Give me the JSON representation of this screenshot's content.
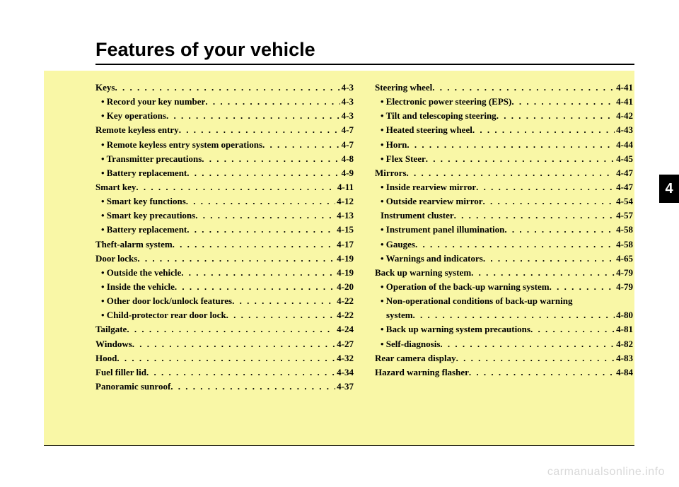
{
  "title": "Features of your vehicle",
  "chapter": "4",
  "watermark": "carmanualsonline.info",
  "toc": [
    {
      "label": "Keys",
      "page": "4-3",
      "level": "main"
    },
    {
      "label": "• Record your key number",
      "page": "4-3",
      "level": "sub"
    },
    {
      "label": "• Key operations",
      "page": "4-3",
      "level": "sub"
    },
    {
      "label": "Remote keyless entry",
      "page": "4-7",
      "level": "main"
    },
    {
      "label": "• Remote keyless entry system operations",
      "page": "4-7",
      "level": "sub"
    },
    {
      "label": "• Transmitter precautions",
      "page": "4-8",
      "level": "sub"
    },
    {
      "label": "• Battery replacement",
      "page": "4-9",
      "level": "sub"
    },
    {
      "label": "Smart key",
      "page": "4-11",
      "level": "main"
    },
    {
      "label": "• Smart key functions",
      "page": "4-12",
      "level": "sub"
    },
    {
      "label": "• Smart key precautions",
      "page": "4-13",
      "level": "sub"
    },
    {
      "label": "• Battery replacement",
      "page": "4-15",
      "level": "sub"
    },
    {
      "label": "Theft-alarm system",
      "page": "4-17",
      "level": "main"
    },
    {
      "label": "Door locks",
      "page": "4-19",
      "level": "main"
    },
    {
      "label": "• Outside the vehicle",
      "page": "4-19",
      "level": "sub"
    },
    {
      "label": "• Inside the vehicle",
      "page": "4-20",
      "level": "sub"
    },
    {
      "label": "• Other door lock/unlock features",
      "page": "4-22",
      "level": "sub"
    },
    {
      "label": "• Child-protector rear door lock",
      "page": "4-22",
      "level": "sub"
    },
    {
      "label": "Tailgate",
      "page": "4-24",
      "level": "main"
    },
    {
      "label": "Windows",
      "page": "4-27",
      "level": "main"
    },
    {
      "label": "Hood",
      "page": "4-32",
      "level": "main"
    },
    {
      "label": "Fuel filler lid",
      "page": "4-34",
      "level": "main"
    },
    {
      "label": "Panoramic sunroof",
      "page": "4-37",
      "level": "main"
    },
    {
      "label": "Steering wheel",
      "page": "4-41",
      "level": "main"
    },
    {
      "label": "• Electronic power steering (EPS)",
      "page": "4-41",
      "level": "sub"
    },
    {
      "label": "• Tilt and telescoping steering",
      "page": "4-42",
      "level": "sub"
    },
    {
      "label": "• Heated steering wheel",
      "page": "4-43",
      "level": "sub"
    },
    {
      "label": "• Horn",
      "page": "4-44",
      "level": "sub"
    },
    {
      "label": "• Flex Steer",
      "page": "4-45",
      "level": "sub"
    },
    {
      "label": "Mirrors",
      "page": "4-47",
      "level": "main"
    },
    {
      "label": "• Inside rearview mirror",
      "page": "4-47",
      "level": "sub"
    },
    {
      "label": "• Outside rearview mirror",
      "page": "4-54",
      "level": "sub"
    },
    {
      "label": "Instrument cluster",
      "page": "4-57",
      "level": "sub"
    },
    {
      "label": "• Instrument panel illumination",
      "page": "4-58",
      "level": "sub"
    },
    {
      "label": "• Gauges",
      "page": "4-58",
      "level": "sub"
    },
    {
      "label": "• Warnings and indicators",
      "page": "4-65",
      "level": "sub"
    },
    {
      "label": "Back up warning system",
      "page": "4-79",
      "level": "main"
    },
    {
      "label": "• Operation of the back-up warning system",
      "page": "4-79",
      "level": "sub"
    },
    {
      "label": "• Non-operational conditions of back-up warning",
      "page": "",
      "level": "sub",
      "nowrap": true
    },
    {
      "label": "system",
      "page": "4-80",
      "level": "sub2"
    },
    {
      "label": "• Back up warning system precautions",
      "page": "4-81",
      "level": "sub"
    },
    {
      "label": "• Self-diagnosis",
      "page": "4-82",
      "level": "sub"
    },
    {
      "label": "Rear camera display",
      "page": "4-83",
      "level": "main"
    },
    {
      "label": "Hazard warning flasher",
      "page": "4-84",
      "level": "main"
    }
  ]
}
